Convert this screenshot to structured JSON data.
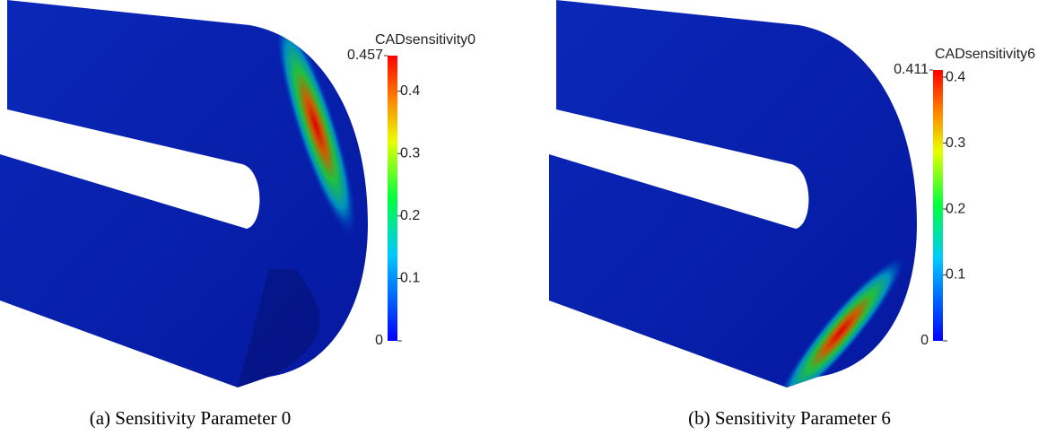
{
  "panels": [
    {
      "colorbar_title": "CADsensitivity0",
      "max": 0.457,
      "ticks": [
        0,
        0.1,
        0.2,
        0.3,
        0.4
      ],
      "caption": "(a) Sensitivity Parameter 0"
    },
    {
      "colorbar_title": "CADsensitivity6",
      "max": 0.411,
      "ticks": [
        0,
        0.1,
        0.2,
        0.3,
        0.4
      ],
      "caption": "(b) Sensitivity Parameter 6"
    }
  ]
}
